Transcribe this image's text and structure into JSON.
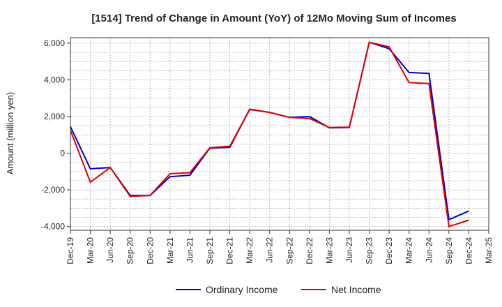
{
  "chart_data": {
    "type": "line",
    "title": "[1514]  Trend of Change in Amount (YoY) of 12Mo Moving Sum of Incomes",
    "ylabel": "Amount (million yen)",
    "xlabel": "",
    "x": [
      "Dec-19",
      "Mar-20",
      "Jun-20",
      "Sep-20",
      "Dec-20",
      "Mar-21",
      "Jun-21",
      "Sep-21",
      "Dec-21",
      "Mar-22",
      "Jun-22",
      "Sep-22",
      "Dec-22",
      "Mar-23",
      "Jun-23",
      "Sep-23",
      "Dec-23",
      "Mar-24",
      "Jun-24",
      "Sep-24",
      "Dec-24",
      "Mar-25"
    ],
    "yticks": [
      -4000,
      -2000,
      0,
      2000,
      4000,
      6000
    ],
    "ytick_labels": [
      "-4,000",
      "-2,000",
      "0",
      "2,000",
      "4,000",
      "6,000"
    ],
    "ylim": [
      -4200,
      6300
    ],
    "grid": true,
    "legend_position": "bottom-center",
    "series": [
      {
        "name": "Ordinary Income",
        "color": "#0000cc",
        "values": [
          1450,
          -850,
          -780,
          -2300,
          -2300,
          -1280,
          -1200,
          280,
          320,
          2400,
          2220,
          1950,
          2000,
          1380,
          1400,
          6050,
          5700,
          4400,
          4350,
          -3620,
          -3150,
          null
        ]
      },
      {
        "name": "Net Income",
        "color": "#dd0000",
        "values": [
          1250,
          -1580,
          -780,
          -2350,
          -2300,
          -1120,
          -1060,
          300,
          380,
          2380,
          2230,
          1950,
          1900,
          1400,
          1420,
          6050,
          5800,
          3850,
          3800,
          -4000,
          -3650,
          null
        ]
      }
    ]
  }
}
